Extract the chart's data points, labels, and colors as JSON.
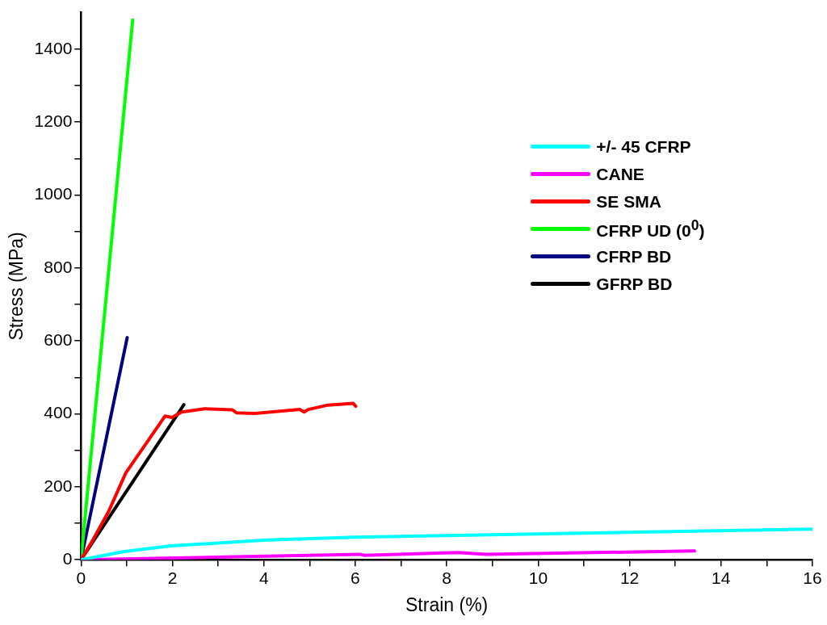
{
  "chart_data": {
    "type": "line",
    "xlabel": "Strain (%)",
    "ylabel": "Stress (MPa)",
    "xlim": [
      0,
      16
    ],
    "ylim": [
      0,
      1500
    ],
    "xticks": [
      0,
      {
        "value": 1,
        "label": null
      },
      2,
      {
        "value": 3,
        "label": null
      },
      4,
      {
        "value": 5,
        "label": null
      },
      6,
      {
        "value": 7,
        "label": null
      },
      8,
      {
        "value": 9,
        "label": null
      },
      10,
      {
        "value": 11,
        "label": null
      },
      12,
      {
        "value": 13,
        "label": null
      },
      14,
      {
        "value": 15,
        "label": null
      },
      16
    ],
    "yticks": [
      0,
      {
        "value": 100,
        "label": null
      },
      200,
      {
        "value": 300,
        "label": null
      },
      400,
      {
        "value": 500,
        "label": null
      },
      600,
      {
        "value": 700,
        "label": null
      },
      800,
      {
        "value": 900,
        "label": null
      },
      1000,
      {
        "value": 1100,
        "label": null
      },
      1200,
      {
        "value": 1300,
        "label": null
      },
      1400
    ],
    "grid": false,
    "legend": "right",
    "marker": "none",
    "line_style": "solid",
    "series": [
      {
        "name": "+/- 45 CFRP",
        "color": "#00ffff",
        "x": [
          0,
          0.92,
          1.96,
          4.06,
          6,
          8.24,
          12.4,
          16
        ],
        "values": [
          0,
          22,
          38,
          54,
          62,
          67,
          76,
          84
        ]
      },
      {
        "name": "CANE",
        "color": "#ff00ff",
        "x": [
          0,
          4.06,
          6.1,
          6.2,
          8.24,
          8.87,
          13.42
        ],
        "values": [
          0,
          10,
          15,
          12,
          20,
          15,
          24
        ]
      },
      {
        "name": "SE SMA",
        "color": "#ff0000",
        "x": [
          0,
          0.24,
          0.61,
          0.98,
          1.84,
          1.99,
          2.2,
          2.7,
          3.31,
          3.4,
          3.8,
          4.79,
          4.88,
          4.97,
          5.4,
          5.95,
          6.01
        ],
        "values": [
          0,
          50,
          134,
          238,
          394,
          390,
          405,
          414,
          411,
          403,
          401,
          412,
          405,
          412,
          424,
          429,
          421
        ]
      },
      {
        "name": "CFRP UD (0$^{0}$)",
        "color": "#00ff00",
        "x": [
          0,
          1.13
        ],
        "values": [
          0,
          1480
        ]
      },
      {
        "name": "CFRP BD",
        "color": "#000080",
        "x": [
          0,
          1.01
        ],
        "values": [
          0,
          609
        ]
      },
      {
        "name": "GFRP BD",
        "color": "#000000",
        "x": [
          0,
          2.25
        ],
        "values": [
          0,
          425
        ]
      }
    ]
  }
}
